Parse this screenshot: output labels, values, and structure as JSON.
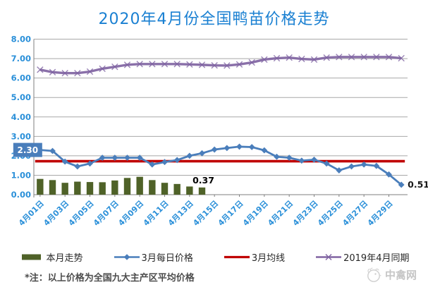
{
  "title": "2020年4月份全国鸭苗价格走势",
  "footnote": "*注：以上价格为全国九大主产区平均价格",
  "watermark": {
    "text": "中禽网",
    "logo": "bird-circle-emblem"
  },
  "colors": {
    "title": "#1a80d2",
    "axis_text": "#2b90d9",
    "gridline": "#a8a8a8",
    "axis_line": "#7f7f7f",
    "bar": "#4f6228",
    "march_daily": "#4a7ebb",
    "march_mean": "#c00000",
    "april_2019": "#8064a2",
    "annotation_box_bg": "#4a7ebb",
    "annotation_box_text": "#ffffff",
    "annotation_text": "#000000"
  },
  "chart_data": {
    "type": "combo",
    "title": "2020年4月份全国鸭苗价格走势",
    "x_points": 30,
    "x_tick_labels": [
      "4月01日",
      "4月03日",
      "4月05日",
      "4月07日",
      "4月09日",
      "4月11日",
      "4月13日",
      "4月15日",
      "4月17日",
      "4月19日",
      "4月21日",
      "4月23日",
      "4月25日",
      "4月27日",
      "4月29日"
    ],
    "y_tick_labels": [
      "8.00",
      "7.00",
      "6.00",
      "5.00",
      "4.00",
      "3.00",
      "2.00",
      "1.00",
      "0.00"
    ],
    "ylim": [
      0,
      8
    ],
    "grid": true,
    "legend_position": "bottom",
    "axis_text_color": "#2b90d9",
    "gridline_color": "#a8a8a8",
    "axis_line_color": "#7f7f7f",
    "series": [
      {
        "name": "本月走势",
        "type": "bar",
        "color": "#4f6228",
        "values": [
          0.81,
          0.75,
          0.61,
          0.67,
          0.65,
          0.64,
          0.73,
          0.86,
          0.92,
          0.75,
          0.61,
          0.55,
          0.42,
          0.37
        ]
      },
      {
        "name": "3月每日价格",
        "type": "line",
        "marker": "diamond",
        "color": "#4a7ebb",
        "values": [
          2.3,
          2.25,
          1.7,
          1.45,
          1.6,
          1.9,
          1.9,
          1.9,
          1.9,
          1.55,
          1.68,
          1.78,
          2.0,
          2.13,
          2.32,
          2.4,
          2.47,
          2.45,
          2.28,
          1.95,
          1.9,
          1.75,
          1.8,
          1.6,
          1.25,
          1.45,
          1.55,
          1.48,
          1.04,
          0.51
        ]
      },
      {
        "name": "3月均线",
        "type": "line",
        "marker": "none",
        "color": "#c00000",
        "constant": 1.72
      },
      {
        "name": "2019年4月同期",
        "type": "line",
        "marker": "x",
        "color": "#8064a2",
        "values": [
          6.43,
          6.3,
          6.25,
          6.25,
          6.33,
          6.48,
          6.58,
          6.68,
          6.72,
          6.72,
          6.72,
          6.72,
          6.7,
          6.68,
          6.65,
          6.64,
          6.7,
          6.8,
          6.95,
          7.02,
          7.05,
          6.98,
          6.95,
          7.05,
          7.08,
          7.08,
          7.08,
          7.08,
          7.08,
          7.02
        ]
      }
    ],
    "annotations": [
      {
        "text": "2.30",
        "style": "blue-box",
        "anchor": "march-first-point"
      },
      {
        "text": "0.37",
        "style": "bold-black",
        "anchor": "last-bar"
      },
      {
        "text": "0.51",
        "style": "black",
        "anchor": "march-last-point"
      }
    ]
  }
}
